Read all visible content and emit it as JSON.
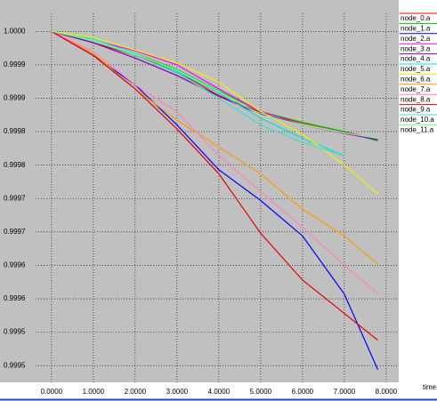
{
  "chart_data": {
    "type": "line",
    "x_label": "time",
    "x": [
      0,
      1,
      2,
      3,
      4,
      5,
      6,
      7,
      7.8
    ],
    "xlim": [
      -0.38,
      8.3
    ],
    "ylim": [
      0.999475,
      1.000027
    ],
    "xticks": [
      {
        "value": 0,
        "label": "0.0000"
      },
      {
        "value": 1,
        "label": "1.0000"
      },
      {
        "value": 2,
        "label": "2.0000"
      },
      {
        "value": 3,
        "label": "3.0000"
      },
      {
        "value": 4,
        "label": "4.0000"
      },
      {
        "value": 5,
        "label": "5.0000"
      },
      {
        "value": 6,
        "label": "6.0000"
      },
      {
        "value": 7,
        "label": "7.0000"
      },
      {
        "value": 8,
        "label": "8.0000"
      }
    ],
    "yticks": [
      {
        "value": 1.0,
        "label": "1.0000"
      },
      {
        "value": 0.99995,
        "label": "0.9999"
      },
      {
        "value": 0.9999,
        "label": "0.9999"
      },
      {
        "value": 0.99985,
        "label": "0.9998"
      },
      {
        "value": 0.9998,
        "label": "0.9998"
      },
      {
        "value": 0.99975,
        "label": "0.9997"
      },
      {
        "value": 0.9997,
        "label": "0.9997"
      },
      {
        "value": 0.99965,
        "label": "0.9996"
      },
      {
        "value": 0.9996,
        "label": "0.9996"
      },
      {
        "value": 0.99955,
        "label": "0.9995"
      },
      {
        "value": 0.9995,
        "label": "0.9995"
      }
    ],
    "grid": true,
    "legend": "right",
    "series": [
      {
        "name": "node_0.a",
        "color": "#ff0000",
        "values": [
          1.0,
          0.999983,
          0.999964,
          0.99994,
          0.999904,
          0.999879,
          0.999863,
          0.99985,
          0.999838
        ]
      },
      {
        "name": "node_1.a",
        "color": "#00c000",
        "values": [
          1.0,
          0.999988,
          0.999967,
          0.999943,
          0.999911,
          0.99988,
          0.999864,
          0.99985,
          0.999836
        ]
      },
      {
        "name": "node_2.a",
        "color": "#0000ff",
        "values": [
          1.0,
          0.999964,
          0.99992,
          0.99986,
          0.999793,
          0.999747,
          0.999694,
          0.999607,
          0.999494
        ]
      },
      {
        "name": "node_3.a",
        "color": "#ff00ff",
        "values": [
          1.0,
          0.999987,
          0.999971,
          0.99995,
          0.999914,
          0.99988,
          0.99986,
          0.999847,
          0.999838
        ]
      },
      {
        "name": "node_4.a",
        "color": "#8000c0",
        "values": [
          1.0,
          0.999983,
          0.99996,
          0.999934,
          0.999903,
          0.999876,
          0.99986,
          0.999848,
          0.999838
        ]
      },
      {
        "name": "node_5.a",
        "color": "#00e0e0",
        "values": [
          1.0,
          0.999988,
          0.999967,
          0.99994,
          0.999908,
          0.99987,
          0.99984,
          0.999814,
          null
        ]
      },
      {
        "name": "node_6.a",
        "color": "#f0f000",
        "values": [
          1.0,
          0.999991,
          0.999972,
          0.999953,
          0.999924,
          0.99988,
          0.999846,
          0.9998,
          0.999757
        ]
      },
      {
        "name": "node_7.a",
        "color": "#ff9900",
        "values": [
          1.0,
          0.999967,
          0.999914,
          0.999867,
          0.999827,
          0.999787,
          0.999734,
          0.999694,
          0.999652
        ]
      },
      {
        "name": "node_8.a",
        "color": "#ff80c0",
        "values": [
          1.0,
          0.99997,
          0.99992,
          0.99988,
          0.999814,
          0.99976,
          0.999707,
          0.99965,
          0.999608
        ]
      },
      {
        "name": "node_9.a",
        "color": "#e00000",
        "values": [
          1.0,
          0.999964,
          0.999914,
          0.999854,
          0.999787,
          0.999698,
          0.999628,
          0.999578,
          0.999538
        ]
      },
      {
        "name": "node_10.a",
        "color": "#40e0c0",
        "values": [
          1.0,
          0.999986,
          0.999964,
          0.999938,
          0.9999,
          0.99986,
          0.999834,
          0.999814,
          null
        ]
      },
      {
        "name": "node_11.a",
        "color": "#80ff80",
        "values": [
          1.0,
          0.999987,
          0.999966,
          0.999942,
          0.99991,
          0.999875,
          0.99986,
          0.999848,
          0.99984
        ]
      }
    ]
  }
}
